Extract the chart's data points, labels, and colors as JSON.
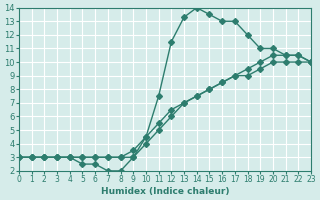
{
  "xlabel": "Humidex (Indice chaleur)",
  "ylabel": "",
  "bg_color": "#d6ecea",
  "line_color": "#2d7d6e",
  "grid_color": "#ffffff",
  "xlim": [
    0,
    23
  ],
  "ylim": [
    2,
    14
  ],
  "xticks": [
    0,
    1,
    2,
    3,
    4,
    5,
    6,
    7,
    8,
    9,
    10,
    11,
    12,
    13,
    14,
    15,
    16,
    17,
    18,
    19,
    20,
    21,
    22,
    23
  ],
  "yticks": [
    2,
    3,
    4,
    5,
    6,
    7,
    8,
    9,
    10,
    11,
    12,
    13,
    14
  ],
  "line1_x": [
    0,
    1,
    2,
    3,
    4,
    5,
    6,
    7,
    8,
    9,
    10,
    11,
    12,
    13,
    14,
    15,
    16,
    17,
    18,
    19,
    20,
    21,
    22,
    23
  ],
  "line1_y": [
    3,
    3,
    3,
    3,
    3,
    2.5,
    2.5,
    2,
    2,
    3,
    4.5,
    7.5,
    11.5,
    13.3,
    14,
    13.5,
    13,
    13,
    12,
    11,
    11,
    10.5,
    10.5,
    10
  ],
  "line2_x": [
    0,
    1,
    2,
    3,
    4,
    5,
    6,
    7,
    8,
    9,
    10,
    11,
    12,
    13,
    14,
    15,
    16,
    17,
    18,
    19,
    20,
    21,
    22,
    23
  ],
  "line2_y": [
    3,
    3,
    3,
    3,
    3,
    3,
    3,
    3,
    3,
    3.5,
    4.5,
    5.5,
    6.5,
    7,
    7.5,
    8,
    8.5,
    9,
    9,
    9.5,
    10,
    10,
    10,
    10
  ],
  "line3_x": [
    0,
    1,
    2,
    3,
    4,
    5,
    6,
    7,
    8,
    9,
    10,
    11,
    12,
    13,
    14,
    15,
    16,
    17,
    18,
    19,
    20,
    21,
    22,
    23
  ],
  "line3_y": [
    3,
    3,
    3,
    3,
    3,
    3,
    3,
    3,
    3,
    3,
    4,
    5,
    6,
    7,
    7.5,
    8,
    8.5,
    9,
    9.5,
    10,
    10.5,
    10.5,
    10.5,
    10
  ]
}
